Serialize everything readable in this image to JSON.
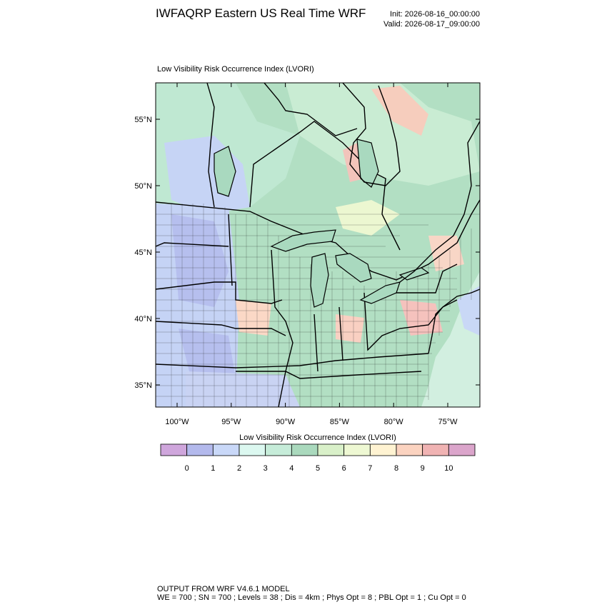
{
  "header": {
    "title": "IWFAQRP Eastern US Real Time WRF",
    "init": "Init: 2026-08-16_00:00:00",
    "valid": "Valid: 2026-08-17_09:00:00"
  },
  "map": {
    "subtitle": "Low Visibility Risk Occurrence Index   (LVORI)",
    "lat_ticks": [
      {
        "value": 55,
        "label": "55°N"
      },
      {
        "value": 50,
        "label": "50°N"
      },
      {
        "value": 45,
        "label": "45°N"
      },
      {
        "value": 40,
        "label": "40°N"
      },
      {
        "value": 35,
        "label": "35°N"
      }
    ],
    "lon_ticks": [
      {
        "value": -100,
        "label": "100°W"
      },
      {
        "value": -95,
        "label": "95°W"
      },
      {
        "value": -90,
        "label": "90°W"
      },
      {
        "value": -85,
        "label": "85°W"
      },
      {
        "value": -80,
        "label": "80°W"
      },
      {
        "value": -75,
        "label": "75°W"
      }
    ]
  },
  "colorbar": {
    "title": "Low Visibility Risk Occurrence Index  (LVORI)",
    "colors": [
      "#cfa6dc",
      "#b3b9ec",
      "#c9d8f8",
      "#dcf8f0",
      "#c6ecd9",
      "#aad9bd",
      "#d9f0c9",
      "#eef8d3",
      "#fff3d2",
      "#fbd3c0",
      "#f0b3b3",
      "#dba5cb"
    ],
    "labels": [
      0,
      1,
      2,
      3,
      4,
      5,
      6,
      7,
      8,
      9,
      10
    ]
  },
  "footer": {
    "line1": "OUTPUT FROM WRF V4.6.1 MODEL",
    "line2": "WE = 700 ; SN = 700 ; Levels = 38 ; Dis = 4km ; Phys Opt = 8 ; PBL Opt = 1 ; Cu Opt = 0"
  }
}
